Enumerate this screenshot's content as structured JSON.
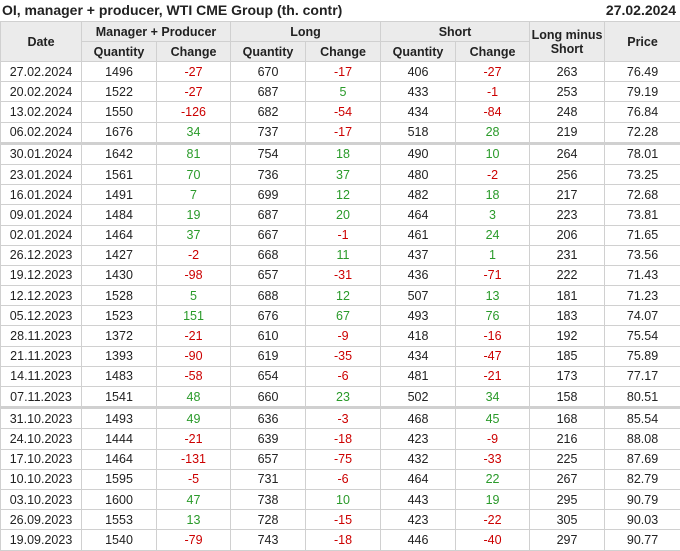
{
  "header": {
    "title": "OI, manager + producer, WTI CME Group (th. contr)",
    "date": "27.02.2024"
  },
  "columns": {
    "date": "Date",
    "group_manager": "Manager + Producer",
    "group_long": "Long",
    "group_short": "Short",
    "long_minus_short": "Long minus Short",
    "price": "Price",
    "quantity": "Quantity",
    "change": "Change"
  },
  "colors": {
    "negative": "#cc0000",
    "positive": "#2a9a2a",
    "header_bg": "#ebebeb"
  },
  "rows": [
    {
      "date": "27.02.2024",
      "mp_qty": "1496",
      "mp_chg": "-27",
      "long_qty": "670",
      "long_chg": "-17",
      "short_qty": "406",
      "short_chg": "-27",
      "lms": "263",
      "price": "76.49"
    },
    {
      "date": "20.02.2024",
      "mp_qty": "1522",
      "mp_chg": "-27",
      "long_qty": "687",
      "long_chg": "5",
      "short_qty": "433",
      "short_chg": "-1",
      "lms": "253",
      "price": "79.19"
    },
    {
      "date": "13.02.2024",
      "mp_qty": "1550",
      "mp_chg": "-126",
      "long_qty": "682",
      "long_chg": "-54",
      "short_qty": "434",
      "short_chg": "-84",
      "lms": "248",
      "price": "76.84"
    },
    {
      "date": "06.02.2024",
      "mp_qty": "1676",
      "mp_chg": "34",
      "long_qty": "737",
      "long_chg": "-17",
      "short_qty": "518",
      "short_chg": "28",
      "lms": "219",
      "price": "72.28"
    },
    {
      "date": "30.01.2024",
      "mp_qty": "1642",
      "mp_chg": "81",
      "long_qty": "754",
      "long_chg": "18",
      "short_qty": "490",
      "short_chg": "10",
      "lms": "264",
      "price": "78.01"
    },
    {
      "date": "23.01.2024",
      "mp_qty": "1561",
      "mp_chg": "70",
      "long_qty": "736",
      "long_chg": "37",
      "short_qty": "480",
      "short_chg": "-2",
      "lms": "256",
      "price": "73.25"
    },
    {
      "date": "16.01.2024",
      "mp_qty": "1491",
      "mp_chg": "7",
      "long_qty": "699",
      "long_chg": "12",
      "short_qty": "482",
      "short_chg": "18",
      "lms": "217",
      "price": "72.68"
    },
    {
      "date": "09.01.2024",
      "mp_qty": "1484",
      "mp_chg": "19",
      "long_qty": "687",
      "long_chg": "20",
      "short_qty": "464",
      "short_chg": "3",
      "lms": "223",
      "price": "73.81"
    },
    {
      "date": "02.01.2024",
      "mp_qty": "1464",
      "mp_chg": "37",
      "long_qty": "667",
      "long_chg": "-1",
      "short_qty": "461",
      "short_chg": "24",
      "lms": "206",
      "price": "71.65"
    },
    {
      "date": "26.12.2023",
      "mp_qty": "1427",
      "mp_chg": "-2",
      "long_qty": "668",
      "long_chg": "11",
      "short_qty": "437",
      "short_chg": "1",
      "lms": "231",
      "price": "73.56"
    },
    {
      "date": "19.12.2023",
      "mp_qty": "1430",
      "mp_chg": "-98",
      "long_qty": "657",
      "long_chg": "-31",
      "short_qty": "436",
      "short_chg": "-71",
      "lms": "222",
      "price": "71.43"
    },
    {
      "date": "12.12.2023",
      "mp_qty": "1528",
      "mp_chg": "5",
      "long_qty": "688",
      "long_chg": "12",
      "short_qty": "507",
      "short_chg": "13",
      "lms": "181",
      "price": "71.23"
    },
    {
      "date": "05.12.2023",
      "mp_qty": "1523",
      "mp_chg": "151",
      "long_qty": "676",
      "long_chg": "67",
      "short_qty": "493",
      "short_chg": "76",
      "lms": "183",
      "price": "74.07"
    },
    {
      "date": "28.11.2023",
      "mp_qty": "1372",
      "mp_chg": "-21",
      "long_qty": "610",
      "long_chg": "-9",
      "short_qty": "418",
      "short_chg": "-16",
      "lms": "192",
      "price": "75.54"
    },
    {
      "date": "21.11.2023",
      "mp_qty": "1393",
      "mp_chg": "-90",
      "long_qty": "619",
      "long_chg": "-35",
      "short_qty": "434",
      "short_chg": "-47",
      "lms": "185",
      "price": "75.89"
    },
    {
      "date": "14.11.2023",
      "mp_qty": "1483",
      "mp_chg": "-58",
      "long_qty": "654",
      "long_chg": "-6",
      "short_qty": "481",
      "short_chg": "-21",
      "lms": "173",
      "price": "77.17"
    },
    {
      "date": "07.11.2023",
      "mp_qty": "1541",
      "mp_chg": "48",
      "long_qty": "660",
      "long_chg": "23",
      "short_qty": "502",
      "short_chg": "34",
      "lms": "158",
      "price": "80.51"
    },
    {
      "date": "31.10.2023",
      "mp_qty": "1493",
      "mp_chg": "49",
      "long_qty": "636",
      "long_chg": "-3",
      "short_qty": "468",
      "short_chg": "45",
      "lms": "168",
      "price": "85.54"
    },
    {
      "date": "24.10.2023",
      "mp_qty": "1444",
      "mp_chg": "-21",
      "long_qty": "639",
      "long_chg": "-18",
      "short_qty": "423",
      "short_chg": "-9",
      "lms": "216",
      "price": "88.08"
    },
    {
      "date": "17.10.2023",
      "mp_qty": "1464",
      "mp_chg": "-131",
      "long_qty": "657",
      "long_chg": "-75",
      "short_qty": "432",
      "short_chg": "-33",
      "lms": "225",
      "price": "87.69"
    },
    {
      "date": "10.10.2023",
      "mp_qty": "1595",
      "mp_chg": "-5",
      "long_qty": "731",
      "long_chg": "-6",
      "short_qty": "464",
      "short_chg": "22",
      "lms": "267",
      "price": "82.79"
    },
    {
      "date": "03.10.2023",
      "mp_qty": "1600",
      "mp_chg": "47",
      "long_qty": "738",
      "long_chg": "10",
      "short_qty": "443",
      "short_chg": "19",
      "lms": "295",
      "price": "90.79"
    },
    {
      "date": "26.09.2023",
      "mp_qty": "1553",
      "mp_chg": "13",
      "long_qty": "728",
      "long_chg": "-15",
      "short_qty": "423",
      "short_chg": "-22",
      "lms": "305",
      "price": "90.03"
    },
    {
      "date": "19.09.2023",
      "mp_qty": "1540",
      "mp_chg": "-79",
      "long_qty": "743",
      "long_chg": "-18",
      "short_qty": "446",
      "short_chg": "-40",
      "lms": "297",
      "price": "90.77"
    }
  ]
}
